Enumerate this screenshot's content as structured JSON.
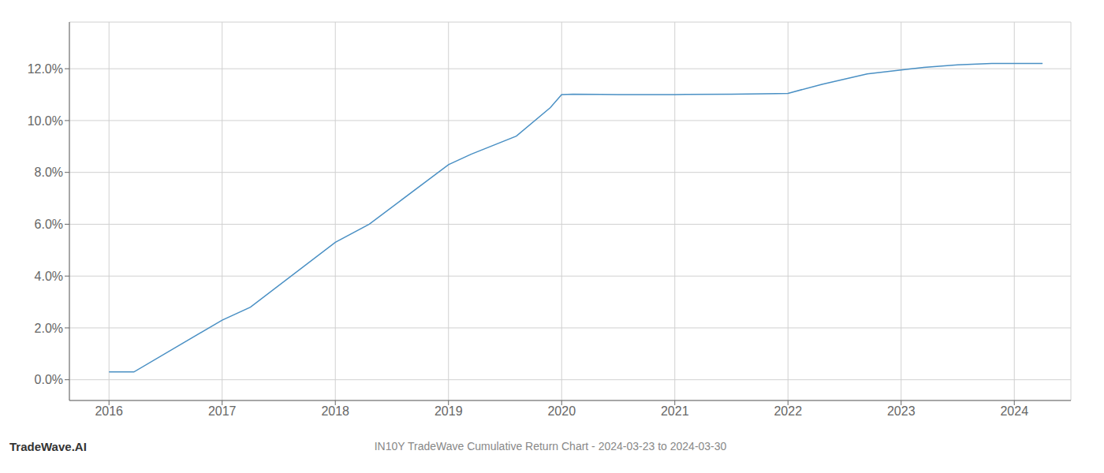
{
  "chart_data": {
    "type": "line",
    "title": "IN10Y TradeWave Cumulative Return Chart - 2024-03-23 to 2024-03-30",
    "annotations": [
      "TradeWave.AI"
    ],
    "x": [
      2016.0,
      2016.22,
      2017.0,
      2017.25,
      2018.0,
      2018.3,
      2019.0,
      2019.2,
      2019.6,
      2019.9,
      2020.0,
      2020.1,
      2020.5,
      2021.0,
      2021.1,
      2021.5,
      2021.9,
      2022.0,
      2022.3,
      2022.7,
      2023.0,
      2023.2,
      2023.5,
      2023.8,
      2024.0,
      2024.25
    ],
    "values": [
      0.003,
      0.003,
      0.023,
      0.028,
      0.053,
      0.06,
      0.083,
      0.087,
      0.094,
      0.105,
      0.11,
      0.1102,
      0.11,
      0.11,
      0.1101,
      0.1102,
      0.1104,
      0.1105,
      0.114,
      0.118,
      0.1195,
      0.1205,
      0.1215,
      0.122,
      0.122,
      0.122
    ],
    "color": "#4a90c4",
    "xlim": [
      2015.65,
      2024.5
    ],
    "ylim": [
      -0.008,
      0.138
    ],
    "xticks": [
      2016,
      2017,
      2018,
      2019,
      2020,
      2021,
      2022,
      2023,
      2024
    ],
    "yticks": [
      {
        "value": 0.0,
        "label": "0.0%"
      },
      {
        "value": 0.02,
        "label": "2.0%"
      },
      {
        "value": 0.04,
        "label": "4.0%"
      },
      {
        "value": 0.06,
        "label": "6.0%"
      },
      {
        "value": 0.08,
        "label": "8.0%"
      },
      {
        "value": 0.1,
        "label": "10.0%"
      },
      {
        "value": 0.12,
        "label": "12.0%"
      }
    ],
    "grid": true
  }
}
